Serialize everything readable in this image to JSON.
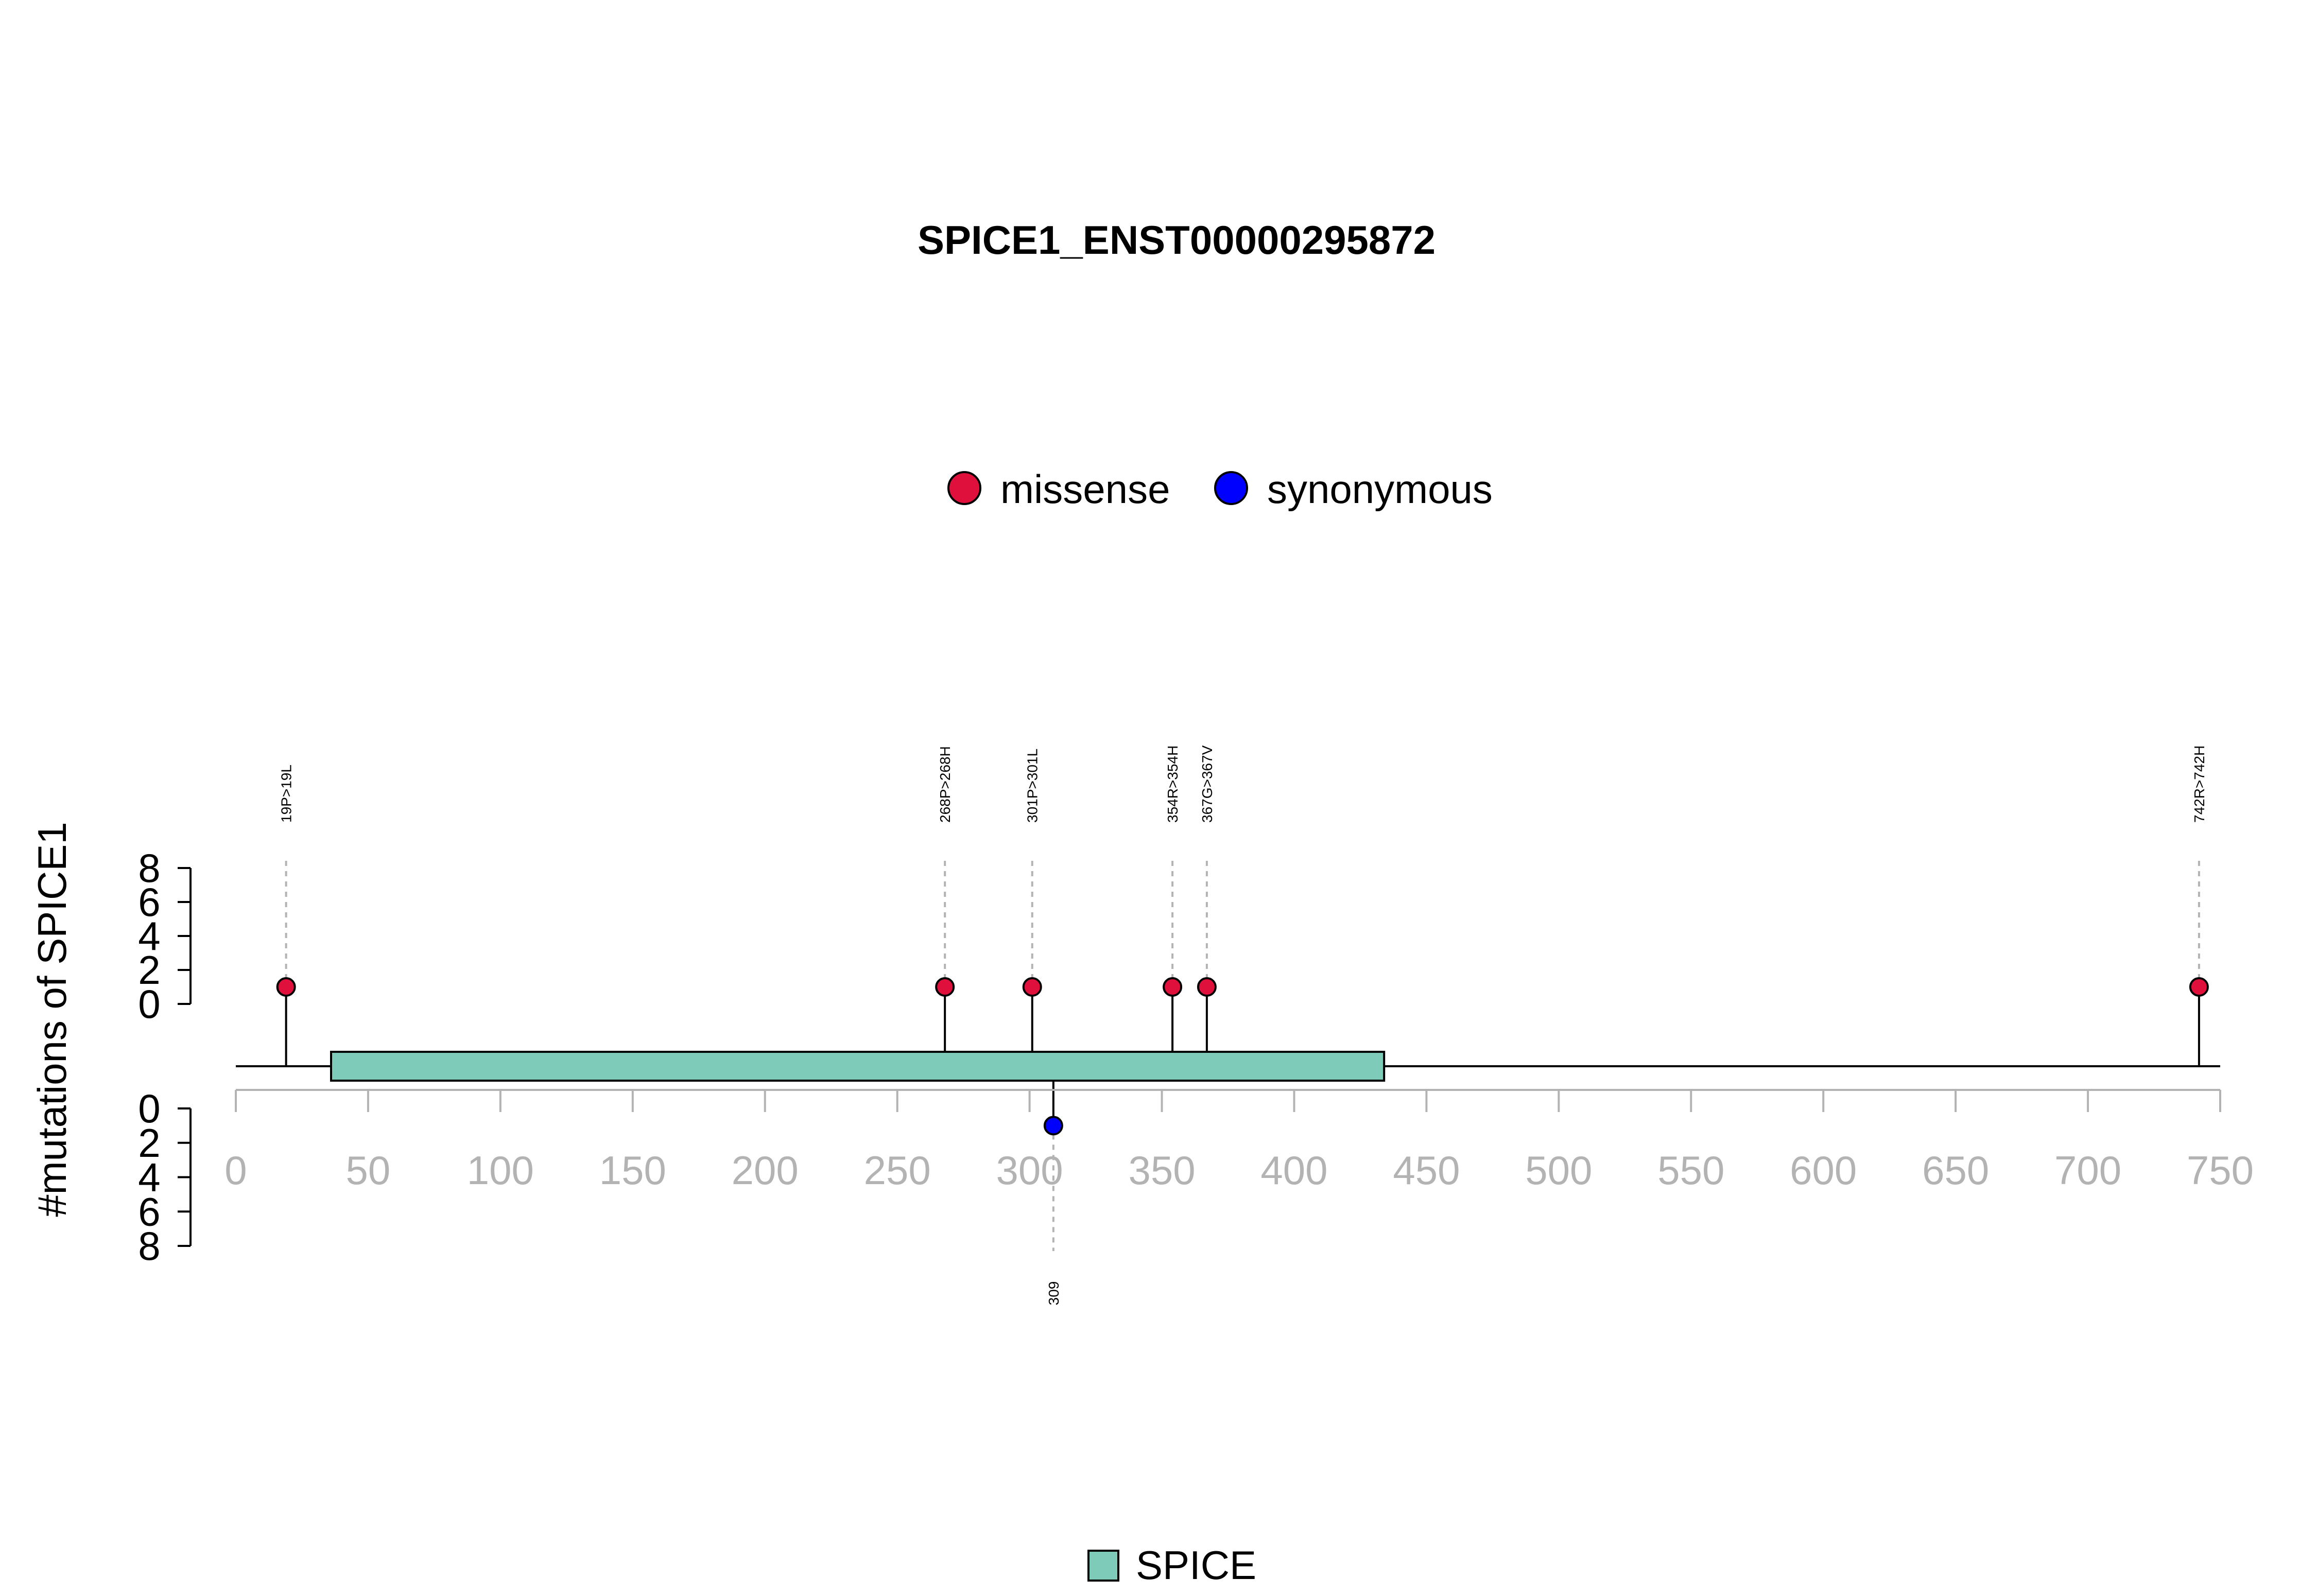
{
  "chart_data": {
    "type": "lollipop",
    "title": "SPICE1_ENST00000295872",
    "ylabel": "#mutations of SPICE1",
    "xlim": [
      0,
      750
    ],
    "x_ticks": [
      0,
      50,
      100,
      150,
      200,
      250,
      300,
      350,
      400,
      450,
      500,
      550,
      600,
      650,
      700,
      750
    ],
    "y_ticks_top": [
      0,
      2,
      4,
      6,
      8
    ],
    "y_ticks_bottom": [
      0,
      2,
      4,
      6,
      8
    ],
    "ylim": [
      0,
      8
    ],
    "protein_length": 750,
    "legend_mutation": [
      {
        "name": "missense",
        "color": "#e0103c"
      },
      {
        "name": "synonymous",
        "color": "#0000ff"
      }
    ],
    "legend_domain": [
      {
        "name": "SPICE",
        "color": "#7fcbba"
      }
    ],
    "domains": [
      {
        "name": "SPICE",
        "start": 36,
        "end": 434,
        "color": "#7fcbba"
      }
    ],
    "mutations_top": [
      {
        "pos": 19,
        "count": 1,
        "label": "19P>19L",
        "type": "missense"
      },
      {
        "pos": 268,
        "count": 1,
        "label": "268P>268H",
        "type": "missense"
      },
      {
        "pos": 301,
        "count": 1,
        "label": "301P>301L",
        "type": "missense"
      },
      {
        "pos": 354,
        "count": 1,
        "label": "354R>354H",
        "type": "missense"
      },
      {
        "pos": 367,
        "count": 1,
        "label": "367G>367V",
        "type": "missense"
      },
      {
        "pos": 742,
        "count": 1,
        "label": "742R>742H",
        "type": "missense"
      }
    ],
    "mutations_bottom": [
      {
        "pos": 309,
        "count": 1,
        "label": "309",
        "type": "synonymous"
      }
    ],
    "colors": {
      "missense": "#e0103c",
      "synonymous": "#0000ff",
      "domain": "#7fcbba",
      "axis_tick": "#b3b3b3"
    }
  }
}
